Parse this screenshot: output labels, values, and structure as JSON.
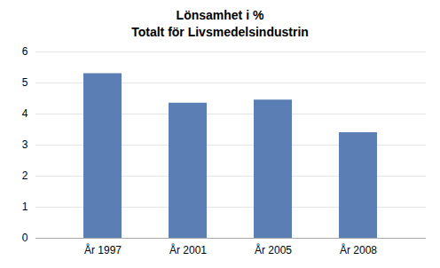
{
  "chart_data": {
    "type": "bar",
    "title": "Lönsamhet i %",
    "subtitle": "Totalt för Livsmedelsindustrin",
    "categories": [
      "År 1997",
      "År 2001",
      "År 2005",
      "År 2008"
    ],
    "values": [
      5.3,
      4.35,
      4.45,
      3.4
    ],
    "color": "#5b7fb5",
    "ylim": [
      0,
      6
    ],
    "yticks": [
      0,
      1,
      2,
      3,
      4,
      5,
      6
    ],
    "grid": true
  }
}
